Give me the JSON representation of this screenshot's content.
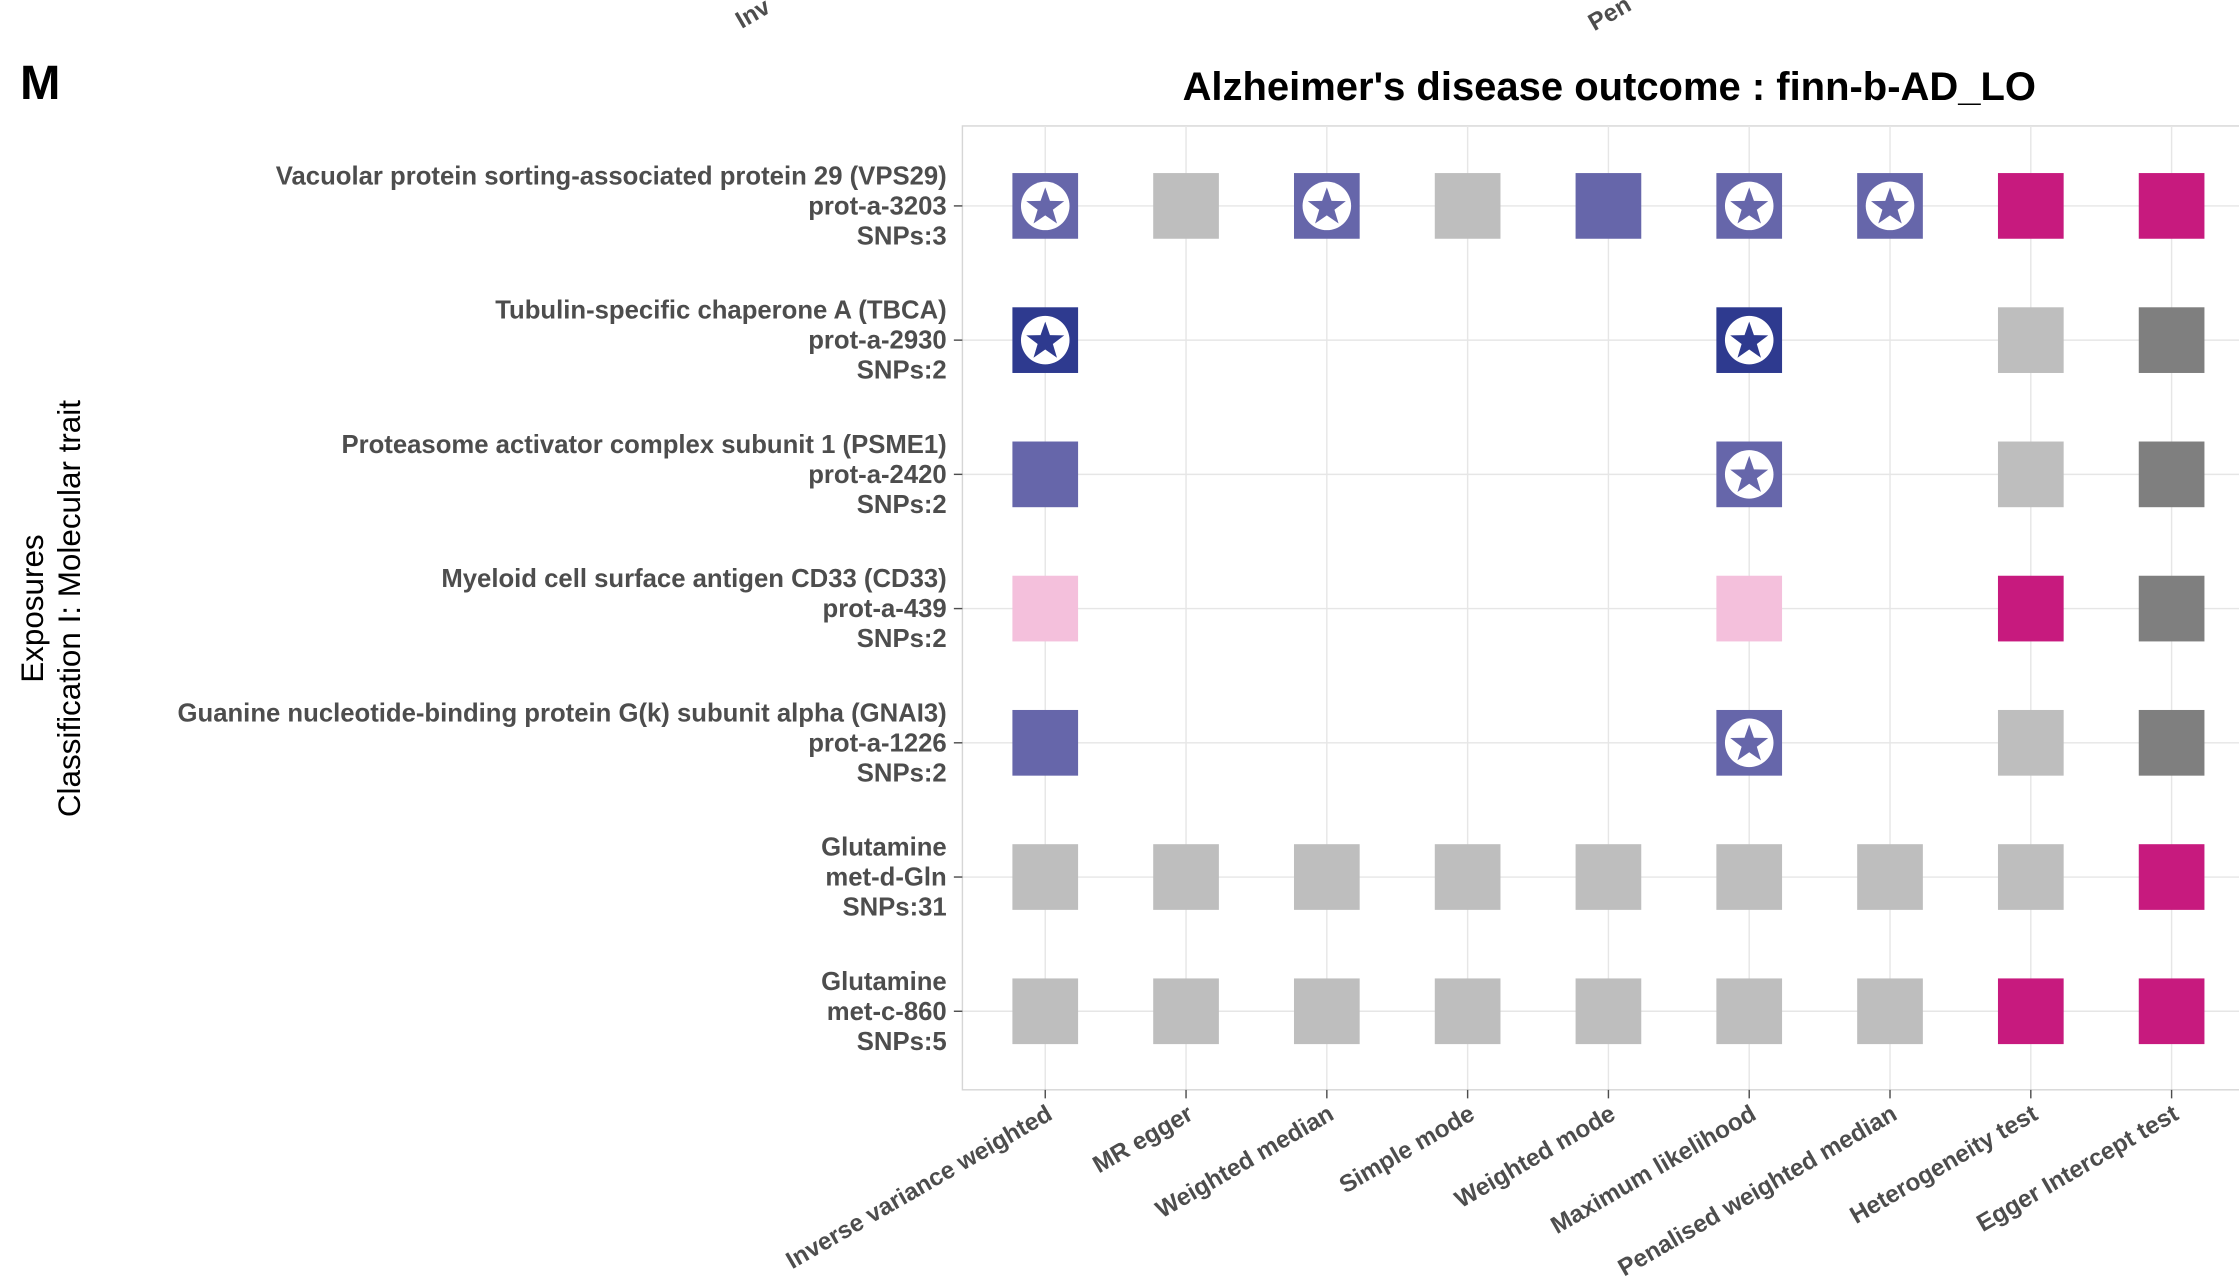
{
  "chart_data": {
    "type": "tile",
    "panel_tag": "M",
    "cropped_labels": [
      "Inv",
      "Pen"
    ],
    "title": "Alzheimer's disease outcome : finn-b-AD_LO",
    "y_label": [
      "Exposures",
      "Classification I: Molecular trait"
    ],
    "categories": [
      "Inverse variance weighted",
      "MR egger",
      "Weighted median",
      "Simple mode",
      "Weighted mode",
      "Maximum likelihood",
      "Penalised weighted median",
      "Heterogeneity test",
      "Egger Intercept test"
    ],
    "rows": [
      [
        "Vacuolar protein sorting-associated protein 29 (VPS29)",
        "prot-a-3203",
        "SNPs:3"
      ],
      [
        "Tubulin-specific chaperone A (TBCA)",
        "prot-a-2930",
        "SNPs:2"
      ],
      [
        "Proteasome activator complex subunit 1 (PSME1)",
        "prot-a-2420",
        "SNPs:2"
      ],
      [
        "Myeloid cell surface antigen CD33 (CD33)",
        "prot-a-439",
        "SNPs:2"
      ],
      [
        "Guanine nucleotide-binding protein G(k) subunit alpha (GNAI3)",
        "prot-a-1226",
        "SNPs:2"
      ],
      [
        "Glutamine",
        "met-d-Gln",
        "SNPs:31"
      ],
      [
        "Glutamine",
        "met-c-860",
        "SNPs:5"
      ]
    ],
    "cells": [
      [
        "#6666aa",
        "#bebebe",
        "#6666aa",
        "#bebebe",
        "#6666aa",
        "#6666aa",
        "#6666aa",
        "#c71a7e",
        "#c71a7e"
      ],
      [
        "#2e3a8f",
        null,
        null,
        null,
        null,
        "#2e3a8f",
        null,
        "#bebebe",
        "#7f7f7f"
      ],
      [
        "#6666aa",
        null,
        null,
        null,
        null,
        "#6666aa",
        null,
        "#bebebe",
        "#7f7f7f"
      ],
      [
        "#f4c0dc",
        null,
        null,
        null,
        null,
        "#f4c0dc",
        null,
        "#c71a7e",
        "#7f7f7f"
      ],
      [
        "#6666aa",
        null,
        null,
        null,
        null,
        "#6666aa",
        null,
        "#bebebe",
        "#7f7f7f"
      ],
      [
        "#bebebe",
        "#bebebe",
        "#bebebe",
        "#bebebe",
        "#bebebe",
        "#bebebe",
        "#bebebe",
        "#bebebe",
        "#c71a7e"
      ],
      [
        "#bebebe",
        "#bebebe",
        "#bebebe",
        "#bebebe",
        "#bebebe",
        "#bebebe",
        "#bebebe",
        "#c71a7e",
        "#c71a7e"
      ]
    ],
    "stars": [
      [
        true,
        false,
        true,
        false,
        false,
        true,
        true,
        false,
        false
      ],
      [
        true,
        false,
        false,
        false,
        false,
        true,
        false,
        false,
        false
      ],
      [
        false,
        false,
        false,
        false,
        false,
        true,
        false,
        false,
        false
      ],
      [
        false,
        false,
        false,
        false,
        false,
        false,
        false,
        false,
        false
      ],
      [
        false,
        false,
        false,
        false,
        false,
        true,
        false,
        false,
        false
      ],
      [
        false,
        false,
        false,
        false,
        false,
        false,
        false,
        false,
        false
      ],
      [
        false,
        false,
        false,
        false,
        false,
        false,
        false,
        false,
        false
      ]
    ],
    "grid": true
  }
}
